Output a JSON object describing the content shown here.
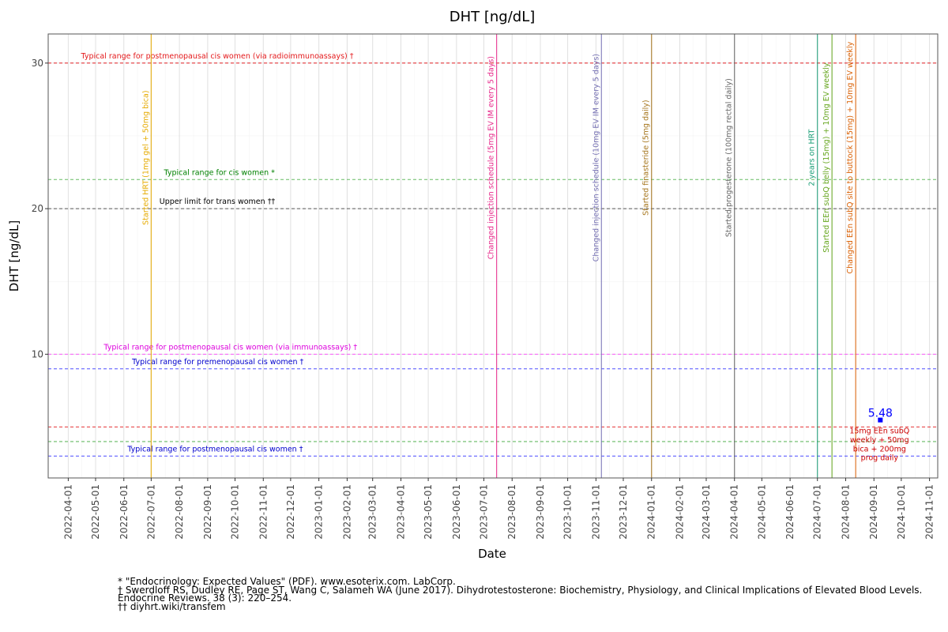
{
  "chart_data": {
    "type": "scatter",
    "title": "DHT [ng/dL]",
    "xlabel": "Date",
    "ylabel": "DHT [ng/dL]",
    "xlim": [
      "2022-03-10",
      "2024-11-10"
    ],
    "ylim": [
      1.5,
      32
    ],
    "yticks": [
      10,
      20,
      30
    ],
    "xticks": [
      "2022-04-01",
      "2022-05-01",
      "2022-06-01",
      "2022-07-01",
      "2022-08-01",
      "2022-09-01",
      "2022-10-01",
      "2022-11-01",
      "2022-12-01",
      "2023-01-01",
      "2023-02-01",
      "2023-03-01",
      "2023-04-01",
      "2023-05-01",
      "2023-06-01",
      "2023-07-01",
      "2023-08-01",
      "2023-09-01",
      "2023-10-01",
      "2023-11-01",
      "2023-12-01",
      "2024-01-01",
      "2024-02-01",
      "2024-03-01",
      "2024-04-01",
      "2024-05-01",
      "2024-06-01",
      "2024-07-01",
      "2024-08-01",
      "2024-09-01",
      "2024-10-01",
      "2024-11-01"
    ],
    "grid": true,
    "points": [
      {
        "x": "2024-09-08",
        "y": 5.48,
        "value_label": "5.48",
        "note": "15mg EEn subQ weekly + 50mg bica + 200mg prog daily",
        "color": "#0000ff",
        "note_color": "#cc0000"
      }
    ],
    "reference_lines": [
      {
        "y": 30,
        "label": "Typical range for postmenopausal cis women (via radioimmunoassays) †",
        "color": "#e41a1c",
        "label_x": "2022-04-15"
      },
      {
        "y": 22,
        "label": "Typical range for cis women *",
        "color": "#4daf4a",
        "text_color": "#008000",
        "label_x": "2022-07-15"
      },
      {
        "y": 20,
        "label": "Upper limit for trans women ††",
        "color": "#404040",
        "text_color": "#000000",
        "label_x": "2022-07-10"
      },
      {
        "y": 10,
        "label": "Typical range for postmenopausal cis women (via immunoassays) †",
        "color": "#ff44ff",
        "text_color": "#dd00dd",
        "label_x": "2022-05-10"
      },
      {
        "y": 9,
        "label": "Typical range for premenopausal cis women †",
        "color": "#4444ff",
        "text_color": "#0000cc",
        "label_x": "2022-06-10"
      },
      {
        "y": 5,
        "label": "",
        "color": "#e41a1c"
      },
      {
        "y": 4,
        "label": "",
        "color": "#4daf4a"
      },
      {
        "y": 3,
        "label": "Typical range for postmenopausal cis women †",
        "color": "#4444ff",
        "text_color": "#0000cc",
        "label_x": "2022-06-05"
      }
    ],
    "events": [
      {
        "date": "2022-07-01",
        "label": "Started HRT (1mg gel + 50mg bica)",
        "color": "#e6ab02"
      },
      {
        "date": "2023-07-15",
        "label": "Changed injection schedule (5mg EV IM every 5 days)",
        "color": "#e7298a"
      },
      {
        "date": "2023-11-07",
        "label": "Changed injection schedule (10mg EV IM every 5 days)",
        "color": "#7570b3"
      },
      {
        "date": "2024-01-01",
        "label": "Started finasteride (5mg daily)",
        "color": "#a6761d"
      },
      {
        "date": "2024-04-01",
        "label": "Started progesterone (100mg rectal daily)",
        "color": "#666666"
      },
      {
        "date": "2024-07-01",
        "label": "2 years on HRT",
        "color": "#1b9e77"
      },
      {
        "date": "2024-07-17",
        "label": "Started EEn subQ belly (15mg) + 10mg EV weekly",
        "color": "#66a61e"
      },
      {
        "date": "2024-08-12",
        "label": "Changed EEn subQ site to buttock (15mg) + 10mg EV weekly",
        "color": "#d95f02"
      }
    ]
  },
  "footnotes": [
    "* \"Endocrinology: Expected Values\" (PDF). www.esoterix.com. LabCorp.",
    "† Swerdloff RS, Dudley RE, Page ST, Wang C, Salameh WA (June 2017). Dihydrotestosterone: Biochemistry, Physiology, and Clinical Implications of Elevated Blood Levels.",
    "Endocrine Reviews. 38 (3): 220–254.",
    "†† diyhrt.wiki/transfem"
  ]
}
